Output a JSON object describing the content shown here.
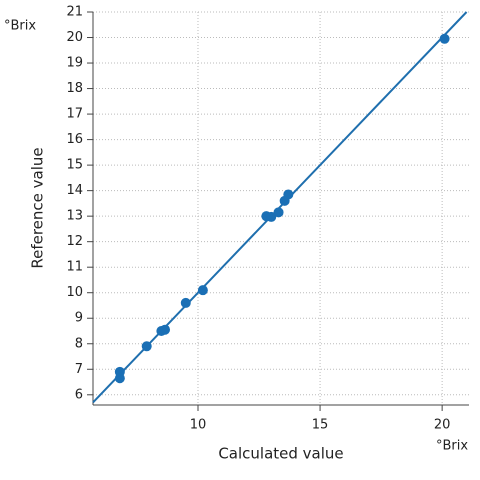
{
  "chart_data": {
    "type": "scatter",
    "y_unit": "°Brix",
    "x_unit": "°Brix",
    "xlabel": "Calculated value",
    "ylabel": "Reference value",
    "x": [
      6.8,
      6.8,
      7.9,
      8.5,
      8.65,
      9.5,
      10.2,
      12.8,
      13.0,
      13.3,
      13.55,
      13.7,
      20.1
    ],
    "series": [
      {
        "color": "#1a6fb5",
        "values": [
          6.65,
          6.9,
          7.9,
          8.5,
          8.55,
          9.6,
          10.1,
          13.0,
          12.97,
          13.15,
          13.6,
          13.85,
          19.95
        ]
      }
    ],
    "xlim": [
      5.7,
      21.1
    ],
    "ylim": [
      5.6,
      21
    ],
    "xticks": [
      10,
      15,
      20
    ],
    "yticks": [
      6,
      7,
      8,
      9,
      10,
      11,
      12,
      13,
      14,
      15,
      16,
      17,
      18,
      19,
      20,
      21
    ],
    "grid": true,
    "identity_line": true,
    "line_color": "#1f6fae"
  }
}
